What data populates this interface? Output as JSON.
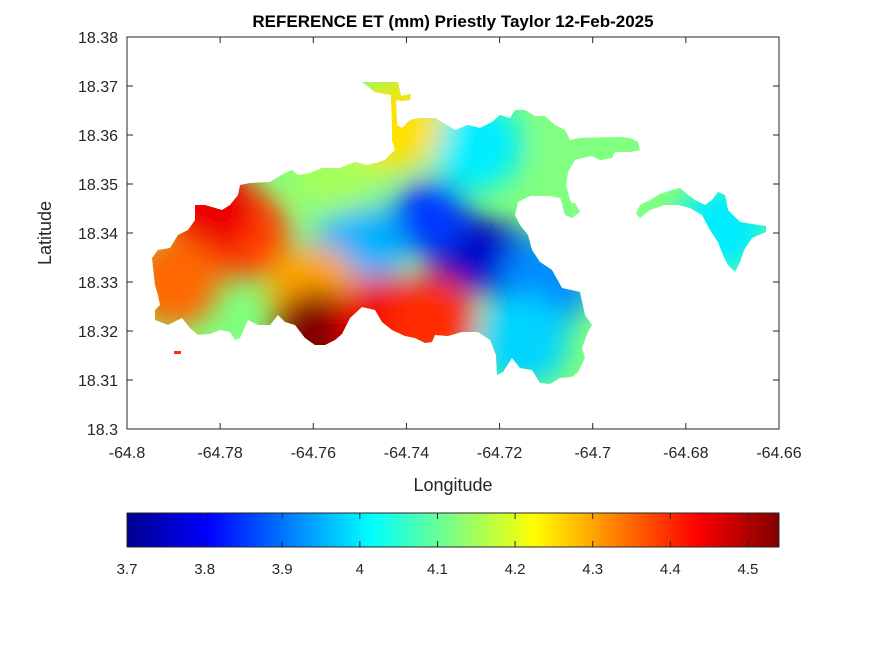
{
  "chart_data": {
    "type": "heatmap",
    "title": "REFERENCE ET (mm) Priestly Taylor 12-Feb-2025",
    "xlabel": "Longitude",
    "ylabel": "Latitude",
    "xlim": [
      -64.8,
      -64.66
    ],
    "ylim": [
      18.3,
      18.38
    ],
    "x_ticks": [
      -64.8,
      -64.78,
      -64.76,
      -64.74,
      -64.72,
      -64.7,
      -64.68,
      -64.66
    ],
    "x_tick_labels": [
      "-64.8",
      "-64.78",
      "-64.76",
      "-64.74",
      "-64.72",
      "-64.7",
      "-64.68",
      "-64.66"
    ],
    "y_ticks": [
      18.3,
      18.31,
      18.32,
      18.33,
      18.34,
      18.35,
      18.36,
      18.37,
      18.38
    ],
    "y_tick_labels": [
      "18.3",
      "18.31",
      "18.32",
      "18.33",
      "18.34",
      "18.35",
      "18.36",
      "18.37",
      "18.38"
    ],
    "grid": false,
    "colormap": "jet",
    "colorbar": {
      "orientation": "horizontal",
      "location": "bottom",
      "range": [
        3.7,
        4.54
      ],
      "ticks": [
        3.7,
        3.8,
        3.9,
        4.0,
        4.1,
        4.2,
        4.3,
        4.4,
        4.5
      ],
      "tick_labels": [
        "3.7",
        "3.8",
        "3.9",
        "4",
        "4.1",
        "4.2",
        "4.3",
        "4.4",
        "4.5"
      ]
    },
    "field_features": [
      {
        "lon": -64.728,
        "lat": 18.337,
        "value": 3.72
      },
      {
        "lon": -64.72,
        "lat": 18.334,
        "value": 3.76
      },
      {
        "lon": -64.735,
        "lat": 18.343,
        "value": 3.85
      },
      {
        "lon": -64.75,
        "lat": 18.337,
        "value": 3.95
      },
      {
        "lon": -64.725,
        "lat": 18.358,
        "value": 4.0
      },
      {
        "lon": -64.71,
        "lat": 18.33,
        "value": 3.92
      },
      {
        "lon": -64.715,
        "lat": 18.318,
        "value": 3.98
      },
      {
        "lon": -64.755,
        "lat": 18.353,
        "value": 4.15
      },
      {
        "lon": -64.742,
        "lat": 18.362,
        "value": 4.25
      },
      {
        "lon": -64.76,
        "lat": 18.328,
        "value": 4.3
      },
      {
        "lon": -64.775,
        "lat": 18.34,
        "value": 4.38
      },
      {
        "lon": -64.782,
        "lat": 18.345,
        "value": 4.45
      },
      {
        "lon": -64.79,
        "lat": 18.33,
        "value": 4.35
      },
      {
        "lon": -64.759,
        "lat": 18.319,
        "value": 4.54
      },
      {
        "lon": -64.745,
        "lat": 18.322,
        "value": 4.45
      },
      {
        "lon": -64.735,
        "lat": 18.322,
        "value": 4.4
      },
      {
        "lon": -64.7,
        "lat": 18.356,
        "value": 4.12
      },
      {
        "lon": -64.672,
        "lat": 18.341,
        "value": 4.0
      }
    ]
  }
}
